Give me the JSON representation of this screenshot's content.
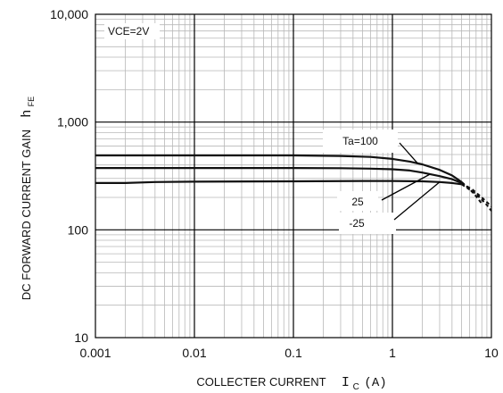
{
  "chart_data": {
    "type": "line",
    "xlabel": "COLLECTER CURRENT",
    "xlabel_symbol": "I",
    "xlabel_sub": "C",
    "xlabel_unit": "(A)",
    "ylabel": "DC FORWARD CURRENT GAIN",
    "ylabel_symbol": "h",
    "ylabel_sub": "FE",
    "x_scale": "log",
    "y_scale": "log",
    "xlim": [
      0.001,
      10
    ],
    "ylim": [
      10,
      10000
    ],
    "grid": true,
    "x_ticks": [
      {
        "value": 0.001,
        "label": "0.001"
      },
      {
        "value": 0.01,
        "label": "0.01"
      },
      {
        "value": 0.1,
        "label": "0.1"
      },
      {
        "value": 1,
        "label": "1"
      },
      {
        "value": 10,
        "label": "10"
      }
    ],
    "y_ticks": [
      {
        "value": 10,
        "label": "10"
      },
      {
        "value": 100,
        "label": "100"
      },
      {
        "value": 1000,
        "label": "1,000"
      },
      {
        "value": 10000,
        "label": "10,000"
      }
    ],
    "condition_label": "VCE=2V",
    "series": [
      {
        "name": "Ta=100",
        "color": "#111111",
        "x": [
          0.001,
          0.01,
          0.1,
          0.3,
          0.6,
          1.0,
          1.5,
          2.0,
          3.0,
          4.0,
          5.0
        ],
        "y": [
          490,
          490,
          490,
          485,
          475,
          455,
          430,
          405,
          360,
          320,
          278
        ],
        "dashed_x": [
          5.0,
          6.0,
          7.0,
          8.0
        ],
        "dashed_y": [
          278,
          240,
          205,
          175
        ]
      },
      {
        "name": "25",
        "color": "#111111",
        "x": [
          0.001,
          0.01,
          0.1,
          0.3,
          0.6,
          1.0,
          1.5,
          2.0,
          3.0,
          4.0,
          5.0
        ],
        "y": [
          375,
          375,
          375,
          373,
          370,
          365,
          355,
          340,
          315,
          295,
          272
        ],
        "dashed_x": [
          5.0,
          6.5,
          8.0,
          10.0
        ],
        "dashed_y": [
          272,
          235,
          200,
          165
        ]
      },
      {
        "name": "-25",
        "color": "#111111",
        "x": [
          0.001,
          0.002,
          0.004,
          0.01,
          0.1,
          0.5,
          1.0,
          2.0,
          3.0,
          4.0,
          5.0
        ],
        "y": [
          272,
          272,
          278,
          280,
          282,
          284,
          284,
          282,
          278,
          272,
          265
        ],
        "dashed_x": [
          5.0,
          7.0,
          9.0,
          10.0
        ],
        "dashed_y": [
          265,
          215,
          170,
          150
        ]
      }
    ],
    "annotations": [
      {
        "text": "Ta=100",
        "series": "Ta=100"
      },
      {
        "text": "25",
        "series": "25"
      },
      {
        "text": "-25",
        "series": "-25"
      }
    ]
  }
}
